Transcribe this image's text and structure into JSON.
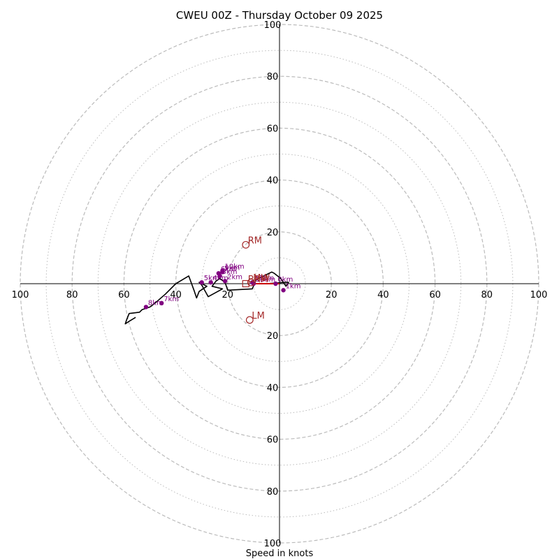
{
  "chart_data": {
    "type": "hodograph",
    "title": "CWEU 00Z - Thursday October 09 2025",
    "xlabel": "Speed in knots",
    "max_speed": 100,
    "rings_major": [
      20,
      40,
      60,
      80,
      100
    ],
    "rings_minor": [
      10,
      30,
      50,
      70,
      90
    ],
    "tick_labels": [
      "20",
      "40",
      "60",
      "80",
      "100"
    ],
    "hodograph_uv": [
      [
        -5,
        0
      ],
      [
        2,
        0.5
      ],
      [
        3.5,
        0.5
      ],
      [
        2.5,
        -1
      ],
      [
        0.5,
        2
      ],
      [
        -2,
        4
      ],
      [
        -3,
        4.5
      ],
      [
        -5,
        3.5
      ],
      [
        -9,
        1.5
      ],
      [
        -10.5,
        -2
      ],
      [
        -20,
        -2.5
      ],
      [
        -21,
        0.5
      ],
      [
        -23,
        2
      ],
      [
        -24.5,
        1
      ],
      [
        -26,
        -1
      ],
      [
        -22,
        -2
      ],
      [
        -27.5,
        -5
      ],
      [
        -30,
        -0.5
      ],
      [
        -31,
        0.5
      ],
      [
        -28,
        -1
      ],
      [
        -31,
        -3
      ],
      [
        -32,
        -5.5
      ],
      [
        -33,
        -2.5
      ],
      [
        -35,
        3
      ],
      [
        -40,
        0
      ],
      [
        -44,
        -4
      ],
      [
        -48,
        -7.5
      ],
      [
        -50,
        -9
      ],
      [
        -53,
        -10
      ],
      [
        -54,
        -11
      ],
      [
        -58,
        -11.5
      ],
      [
        -59,
        -14
      ],
      [
        -59.5,
        -15.5
      ],
      [
        -58,
        -14.5
      ],
      [
        -55.5,
        -13
      ]
    ],
    "height_markers": [
      {
        "label": "0km",
        "u": -1.5,
        "v": 0
      },
      {
        "label": "1km",
        "u": 1.5,
        "v": -2.5
      },
      {
        "label": "2km",
        "u": -21,
        "v": 1
      },
      {
        "label": "3km",
        "u": -23,
        "v": 3
      },
      {
        "label": "4km",
        "u": -26.5,
        "v": 0.5
      },
      {
        "label": "5km",
        "u": -30,
        "v": 0.5
      },
      {
        "label": "6km",
        "u": -23.5,
        "v": 4
      },
      {
        "label": "7km",
        "u": -45.5,
        "v": -7.5
      },
      {
        "label": "8km",
        "u": -51.5,
        "v": -9
      },
      {
        "label": "9km",
        "u": -22,
        "v": 4.5
      },
      {
        "label": "10km",
        "u": -22,
        "v": 5
      },
      {
        "label": "11km",
        "u": -10.5,
        "v": 0.5
      },
      {
        "label": "12km",
        "u": -10,
        "v": 0
      }
    ],
    "storm_motions": [
      {
        "label": "RM",
        "u": -13,
        "v": 15
      },
      {
        "label": "LM",
        "u": -11.5,
        "v": -14
      },
      {
        "label": "MW",
        "u": -11,
        "v": 0.5
      },
      {
        "label": "BRM",
        "u": -13,
        "v": 0
      }
    ],
    "shear_vector": {
      "from": [
        -10,
        0
      ],
      "to": [
        0,
        0
      ]
    },
    "colors": {
      "trace": "#000000",
      "markers": "#800080",
      "motion": "#a52a2a",
      "shear": "#cc0000",
      "grid": "#bbbbbb"
    }
  }
}
